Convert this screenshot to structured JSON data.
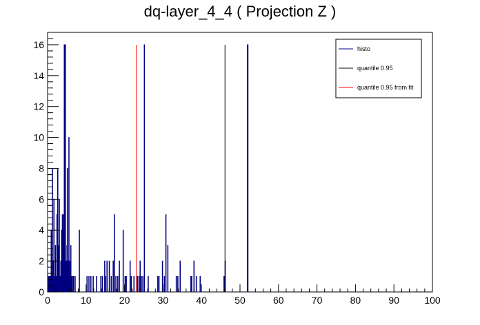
{
  "chart_data": {
    "type": "bar",
    "title": "dq-layer_4_4 ( Projection Z )",
    "xlabel": "",
    "ylabel": "",
    "xlim": [
      0,
      100
    ],
    "ylim": [
      0,
      16.8
    ],
    "x_ticks": [
      0,
      10,
      20,
      30,
      40,
      50,
      60,
      70,
      80,
      90,
      100
    ],
    "y_ticks": [
      0,
      2,
      4,
      6,
      8,
      10,
      12,
      14,
      16
    ],
    "grid": false,
    "legend_position": "top-right",
    "bin_width": 0.1,
    "series": [
      {
        "name": "histo",
        "color": "#000080",
        "x": [
          0.2,
          0.3,
          0.5,
          0.7,
          0.9,
          1.0,
          1.2,
          1.4,
          1.6,
          1.8,
          2.0,
          2.2,
          2.4,
          2.6,
          2.8,
          3.0,
          3.2,
          3.4,
          3.6,
          3.8,
          4.0,
          4.1,
          4.3,
          4.5,
          4.6,
          4.8,
          5.0,
          5.1,
          5.3,
          5.5,
          5.7,
          5.9,
          6.0,
          6.2,
          6.4,
          6.7,
          7.1,
          8.2,
          10.2,
          10.7,
          11.2,
          11.8,
          12.7,
          13.8,
          14.2,
          14.8,
          15.0,
          15.4,
          16.0,
          16.5,
          17.0,
          17.3,
          17.7,
          18.2,
          18.6,
          19.6,
          20.1,
          20.4,
          21.4,
          21.7,
          22.4,
          23.3,
          23.7,
          24.0,
          24.3,
          24.7,
          25.1,
          26.1,
          28.6,
          28.9,
          29.8,
          30.3,
          30.7,
          31.2,
          33.4,
          33.8,
          34.4,
          37.2,
          37.4,
          38.0,
          38.6,
          39.6,
          45.8,
          46.0,
          46.1,
          51.9,
          52.0
        ],
        "values": [
          1,
          1,
          1,
          1,
          4,
          1,
          8,
          2,
          6,
          1,
          3,
          1,
          5,
          8,
          3,
          6,
          1,
          2,
          4,
          5,
          4,
          5,
          16,
          2,
          16,
          2,
          3,
          8,
          2,
          10,
          2,
          1,
          3,
          1,
          1,
          1,
          1,
          4,
          1,
          1,
          1,
          1,
          1,
          1,
          1,
          2,
          1,
          2,
          2,
          1,
          2,
          5,
          1,
          1,
          2,
          4,
          1,
          1,
          2,
          1,
          1,
          1,
          1,
          2,
          1,
          1,
          16,
          1,
          1,
          1,
          2,
          1,
          5,
          3,
          1,
          1,
          2,
          1,
          1,
          2,
          1,
          1,
          1,
          1,
          2,
          16,
          16
        ]
      }
    ],
    "lines": [
      {
        "name": "quantile 0.95",
        "x": 46.1,
        "color": "#000000"
      },
      {
        "name": "quantile 0.95 from fit",
        "x": 23.1,
        "color": "#ff0000"
      }
    ]
  }
}
